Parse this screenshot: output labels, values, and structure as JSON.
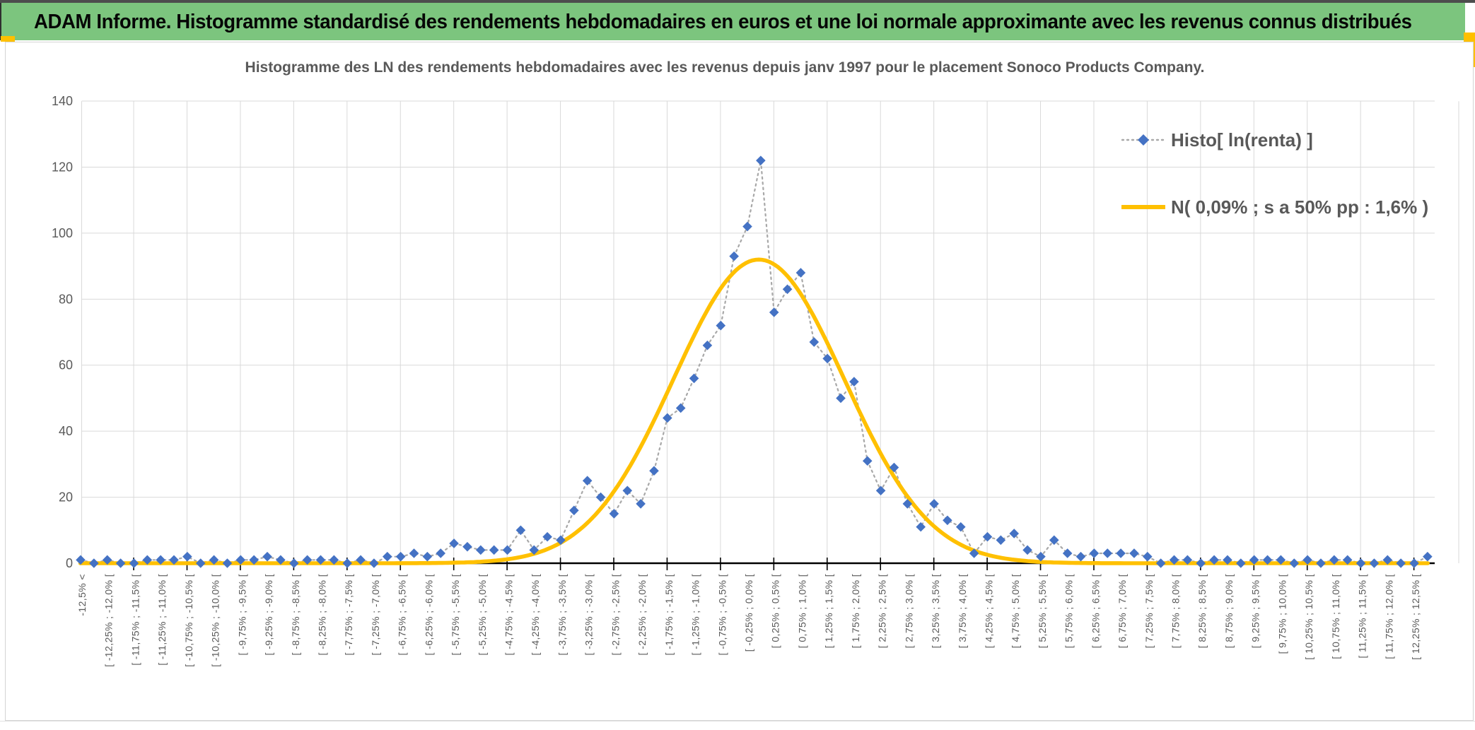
{
  "banner": {
    "title": "ADAM Informe. Histogramme standardisé des rendements hebdomadaires en euros et une loi normale approximante avec les revenus connus distribués"
  },
  "chart_data": {
    "type": "line",
    "title": "Histogramme des LN des rendements hebdomadaires avec les revenus depuis janv 1997 pour le placement Sonoco Products Company.",
    "xlabel": "",
    "ylabel": "",
    "ylim": [
      0,
      140
    ],
    "yticks": [
      0,
      20,
      40,
      60,
      80,
      100,
      120,
      140
    ],
    "grid": true,
    "legend_position": "top-right",
    "categories": [
      "-12,5% <",
      "",
      "[ -12,25% ; -12,0% [",
      "",
      "[ -11,75% ; -11,5% [",
      "",
      "[ -11,25% ; -11,0% [",
      "",
      "[ -10,75% ; -10,5% [",
      "",
      "[ -10,25% ; -10,0% [",
      "",
      "[ -9,75% ; -9,5% [",
      "",
      "[ -9,25% ; -9,0% [",
      "",
      "[ -8,75% ; -8,5% [",
      "",
      "[ -8,25% ; -8,0% [",
      "",
      "[ -7,75% ; -7,5% [",
      "",
      "[ -7,25% ; -7,0% [",
      "",
      "[ -6,75% ; -6,5% [",
      "",
      "[ -6,25% ; -6,0% [",
      "",
      "[ -5,75% ; -5,5% [",
      "",
      "[ -5,25% ; -5,0% [",
      "",
      "[ -4,75% ; -4,5% [",
      "",
      "[ -4,25% ; -4,0% [",
      "",
      "[ -3,75% ; -3,5% [",
      "",
      "[ -3,25% ; -3,0% [",
      "",
      "[ -2,75% ; -2,5% [",
      "",
      "[ -2,25% ; -2,0% [",
      "",
      "[ -1,75% ; -1,5% [",
      "",
      "[ -1,25% ; -1,0% [",
      "",
      "[ -0,75% ; -0,5% [",
      "",
      "[ -0,25% ; 0,0% [",
      "",
      "[ 0,25% ; 0,5% [",
      "",
      "[ 0,75% ; 1,0% [",
      "",
      "[ 1,25% ; 1,5% [",
      "",
      "[ 1,75% ; 2,0% [",
      "",
      "[ 2,25% ; 2,5% [",
      "",
      "[ 2,75% ; 3,0% [",
      "",
      "[ 3,25% ; 3,5% [",
      "",
      "[ 3,75% ; 4,0% [",
      "",
      "[ 4,25% ; 4,5% [",
      "",
      "[ 4,75% ; 5,0% [",
      "",
      "[ 5,25% ; 5,5% [",
      "",
      "[ 5,75% ; 6,0% [",
      "",
      "[ 6,25% ; 6,5% [",
      "",
      "[ 6,75% ; 7,0% [",
      "",
      "[ 7,25% ; 7,5% [",
      "",
      "[ 7,75% ; 8,0% [",
      "",
      "[ 8,25% ; 8,5% [",
      "",
      "[ 8,75% ; 9,0% [",
      "",
      "[ 9,25% ; 9,5% [",
      "",
      "[ 9,75% ; 10,0% [",
      "",
      "[ 10,25% ; 10,5% [",
      "",
      "[ 10,75% ; 11,0% [",
      "",
      "[ 11,25% ; 11,5% [",
      "",
      "[ 11,75% ; 12,0% [",
      "",
      "[ 12,25% ; 12,5% [",
      ""
    ],
    "series": [
      {
        "name": "Histo[ ln(renta) ]",
        "type": "scatter-dotted",
        "marker": "diamond",
        "color": "#4472C4",
        "line_color": "#A8A8A8",
        "values": [
          1,
          0,
          1,
          0,
          0,
          1,
          1,
          1,
          2,
          0,
          1,
          0,
          1,
          1,
          2,
          1,
          0,
          1,
          1,
          1,
          0,
          1,
          0,
          2,
          2,
          3,
          2,
          3,
          6,
          5,
          4,
          4,
          4,
          10,
          4,
          8,
          7,
          16,
          25,
          20,
          15,
          22,
          18,
          28,
          44,
          47,
          56,
          66,
          72,
          93,
          102,
          122,
          76,
          83,
          88,
          67,
          62,
          50,
          55,
          31,
          22,
          29,
          18,
          11,
          18,
          13,
          11,
          3,
          8,
          7,
          9,
          4,
          2,
          7,
          3,
          2,
          3,
          3,
          3,
          3,
          2,
          0,
          1,
          1,
          0,
          1,
          1,
          0,
          1,
          1,
          1,
          0,
          1,
          0,
          1,
          1,
          0,
          0,
          1,
          0,
          0,
          2
        ]
      },
      {
        "name": "N( 0,09% ; s a 50% pp : 1,6% )",
        "type": "normal-curve",
        "color": "#FFC000",
        "mean_pct": 0.09,
        "sd_pct": 1.6,
        "peak_count": 92,
        "bin_width_pct": 0.25,
        "axis_min_pct": -12.5,
        "axis_max_pct": 12.5
      }
    ]
  },
  "colors": {
    "banner_bg": "#7CC57E",
    "banner_text": "#060606",
    "selection_handle": "#FFC000",
    "series_marker": "#4472C4",
    "series_dotted_line": "#A8A8A8",
    "normal_curve": "#FFC000",
    "gridline": "#D9D9D9",
    "axis": "#000000",
    "label_text": "#595959"
  }
}
